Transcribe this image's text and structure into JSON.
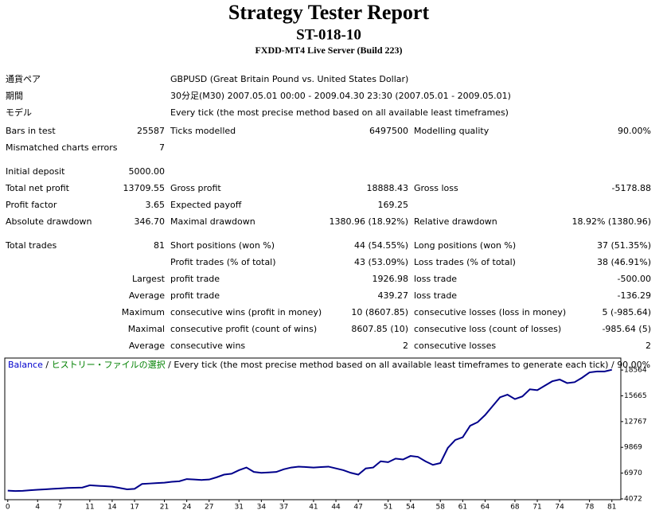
{
  "header": {
    "title": "Strategy Tester Report",
    "subtitle": "ST-018-10",
    "server": "FXDD-MT4 Live Server (Build 223)"
  },
  "table": {
    "rows": [
      [
        "通貨ペア",
        null,
        "GBPUSD (Great Britain Pound vs. United States Dollar)",
        null,
        null,
        null
      ],
      [
        "期間",
        null,
        "30分足(M30) 2007.05.01 00:00 - 2009.04.30 23:30 (2007.05.01 - 2009.05.01)",
        null,
        null,
        null
      ],
      [
        "モデル",
        null,
        "Every tick (the most precise method based on all available least timeframes)",
        null,
        null,
        null
      ],
      [
        "Bars in test",
        "25587",
        "Ticks modelled",
        "6497500",
        "Modelling quality",
        "90.00%"
      ],
      [
        "Mismatched charts errors",
        "7",
        null,
        null,
        null,
        null
      ],
      [
        "Initial deposit",
        "5000.00",
        null,
        null,
        null,
        null
      ],
      [
        "Total net profit",
        "13709.55",
        "Gross profit",
        "18888.43",
        "Gross loss",
        "-5178.88"
      ],
      [
        "Profit factor",
        "3.65",
        "Expected payoff",
        "169.25",
        null,
        null
      ],
      [
        "Absolute drawdown",
        "346.70",
        "Maximal drawdown",
        "1380.96 (18.92%)",
        "Relative drawdown",
        "18.92% (1380.96)"
      ],
      [
        "Total trades",
        "81",
        "Short positions (won %)",
        "44 (54.55%)",
        "Long positions (won %)",
        "37 (51.35%)"
      ],
      [
        null,
        null,
        "Profit trades (% of total)",
        "43 (53.09%)",
        "Loss trades (% of total)",
        "38 (46.91%)"
      ],
      [
        null,
        "Largest",
        "profit trade",
        "1926.98",
        "loss trade",
        "-500.00"
      ],
      [
        null,
        "Average",
        "profit trade",
        "439.27",
        "loss trade",
        "-136.29"
      ],
      [
        null,
        "Maximum",
        "consecutive wins (profit in money)",
        "10 (8607.85)",
        "consecutive losses (loss in money)",
        "5 (-985.64)"
      ],
      [
        null,
        "Maximal",
        "consecutive profit (count of wins)",
        "8607.85 (10)",
        "consecutive loss (count of losses)",
        "-985.64 (5)"
      ],
      [
        null,
        "Average",
        "consecutive wins",
        "2",
        "consecutive losses",
        "2"
      ]
    ]
  },
  "chart_data": {
    "type": "line",
    "legend": {
      "series": "Balance",
      "separator": "/",
      "source": "ヒストリー・ファイルの選択",
      "model": "Every tick (the most precise method based on all available least timeframes to generate each tick)",
      "quality": "90.00%"
    },
    "x": [
      0,
      1,
      2,
      3,
      4,
      5,
      6,
      7,
      8,
      9,
      10,
      11,
      12,
      13,
      14,
      15,
      16,
      17,
      18,
      19,
      20,
      21,
      22,
      23,
      24,
      25,
      26,
      27,
      28,
      29,
      30,
      31,
      32,
      33,
      34,
      35,
      36,
      37,
      38,
      39,
      40,
      41,
      42,
      43,
      44,
      45,
      46,
      47,
      48,
      49,
      50,
      51,
      52,
      53,
      54,
      55,
      56,
      57,
      58,
      59,
      60,
      61,
      62,
      63,
      64,
      65,
      66,
      67,
      68,
      69,
      70,
      71,
      72,
      73,
      74,
      75,
      76,
      77,
      78,
      79,
      80,
      81
    ],
    "series": [
      {
        "name": "Balance",
        "color": "#00008b",
        "values": [
          5000,
          4950,
          4980,
          5050,
          5100,
          5150,
          5200,
          5250,
          5300,
          5320,
          5350,
          5600,
          5550,
          5500,
          5450,
          5300,
          5150,
          5200,
          5750,
          5800,
          5850,
          5900,
          6000,
          6050,
          6300,
          6250,
          6200,
          6250,
          6500,
          6800,
          6900,
          7300,
          7600,
          7100,
          7000,
          7050,
          7100,
          7400,
          7600,
          7700,
          7650,
          7600,
          7650,
          7700,
          7500,
          7300,
          7000,
          6800,
          7500,
          7600,
          8300,
          8200,
          8600,
          8500,
          8900,
          8800,
          8300,
          7900,
          8100,
          9800,
          10700,
          11000,
          12300,
          12700,
          13500,
          14500,
          15500,
          15800,
          15300,
          15600,
          16400,
          16300,
          16800,
          17300,
          17500,
          17100,
          17200,
          17700,
          18300,
          18400,
          18400,
          18600
        ]
      }
    ],
    "xlim": [
      -0.4,
      82.2
    ],
    "ylim": [
      3982,
      19914
    ],
    "xticks": [
      0,
      4,
      7,
      11,
      14,
      17,
      21,
      24,
      27,
      31,
      34,
      37,
      41,
      44,
      47,
      51,
      54,
      58,
      61,
      64,
      68,
      71,
      74,
      78,
      81
    ],
    "yticks": [
      4072,
      6970,
      9869,
      12767,
      15665,
      18564
    ]
  }
}
